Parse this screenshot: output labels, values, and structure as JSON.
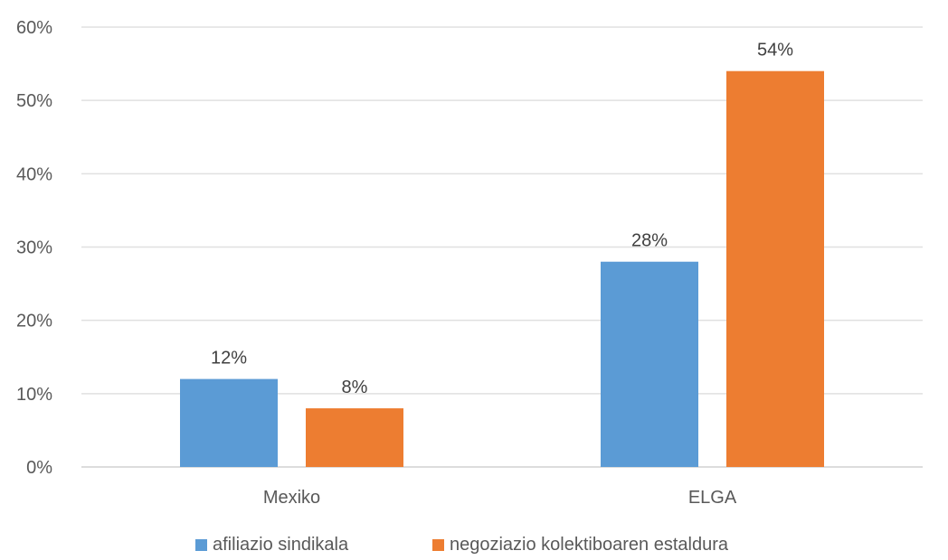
{
  "chart_data": {
    "type": "bar",
    "categories": [
      "Mexiko",
      "ELGA"
    ],
    "series": [
      {
        "name": "afiliazio sindikala",
        "values": [
          12,
          28
        ],
        "color": "#5B9BD5"
      },
      {
        "name": "negoziazio kolektiboaren estaldura",
        "values": [
          8,
          54
        ],
        "color": "#ED7D31"
      }
    ],
    "data_labels": [
      [
        "12%",
        "28%"
      ],
      [
        "8%",
        "54%"
      ]
    ],
    "yticks": [
      "0%",
      "10%",
      "20%",
      "30%",
      "40%",
      "50%",
      "60%"
    ],
    "ylim": [
      0,
      60
    ],
    "grid": true,
    "legend_position": "bottom"
  }
}
